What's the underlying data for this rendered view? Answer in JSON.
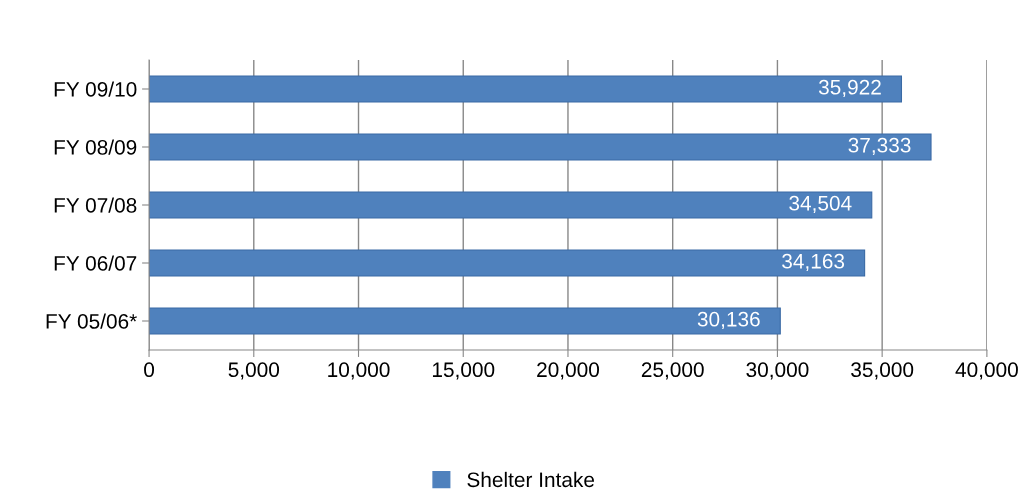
{
  "chart_data": {
    "type": "bar",
    "orientation": "horizontal",
    "categories": [
      "FY 09/10",
      "FY 08/09",
      "FY 07/08",
      "FY 06/07",
      "FY 05/06*"
    ],
    "series": [
      {
        "name": "Shelter Intake",
        "color": "#4f81bd",
        "values": [
          35922,
          37333,
          34504,
          34163,
          30136
        ],
        "value_labels": [
          "35,922",
          "37,333",
          "34,504",
          "34,163",
          "30,136"
        ]
      }
    ],
    "xlim": [
      0,
      40000
    ],
    "xticks": [
      0,
      {
        "value": 5000,
        "label": "5,000"
      },
      {
        "value": 10000,
        "label": "10,000"
      },
      {
        "value": 15000,
        "label": "15,000"
      },
      {
        "value": 20000,
        "label": "20,000"
      },
      {
        "value": 25000,
        "label": "25,000"
      },
      {
        "value": 30000,
        "label": "30,000"
      },
      {
        "value": 35000,
        "label": "35,000"
      },
      {
        "value": 40000,
        "label": "40,000"
      }
    ],
    "grid": "x",
    "legend": "bottom"
  }
}
